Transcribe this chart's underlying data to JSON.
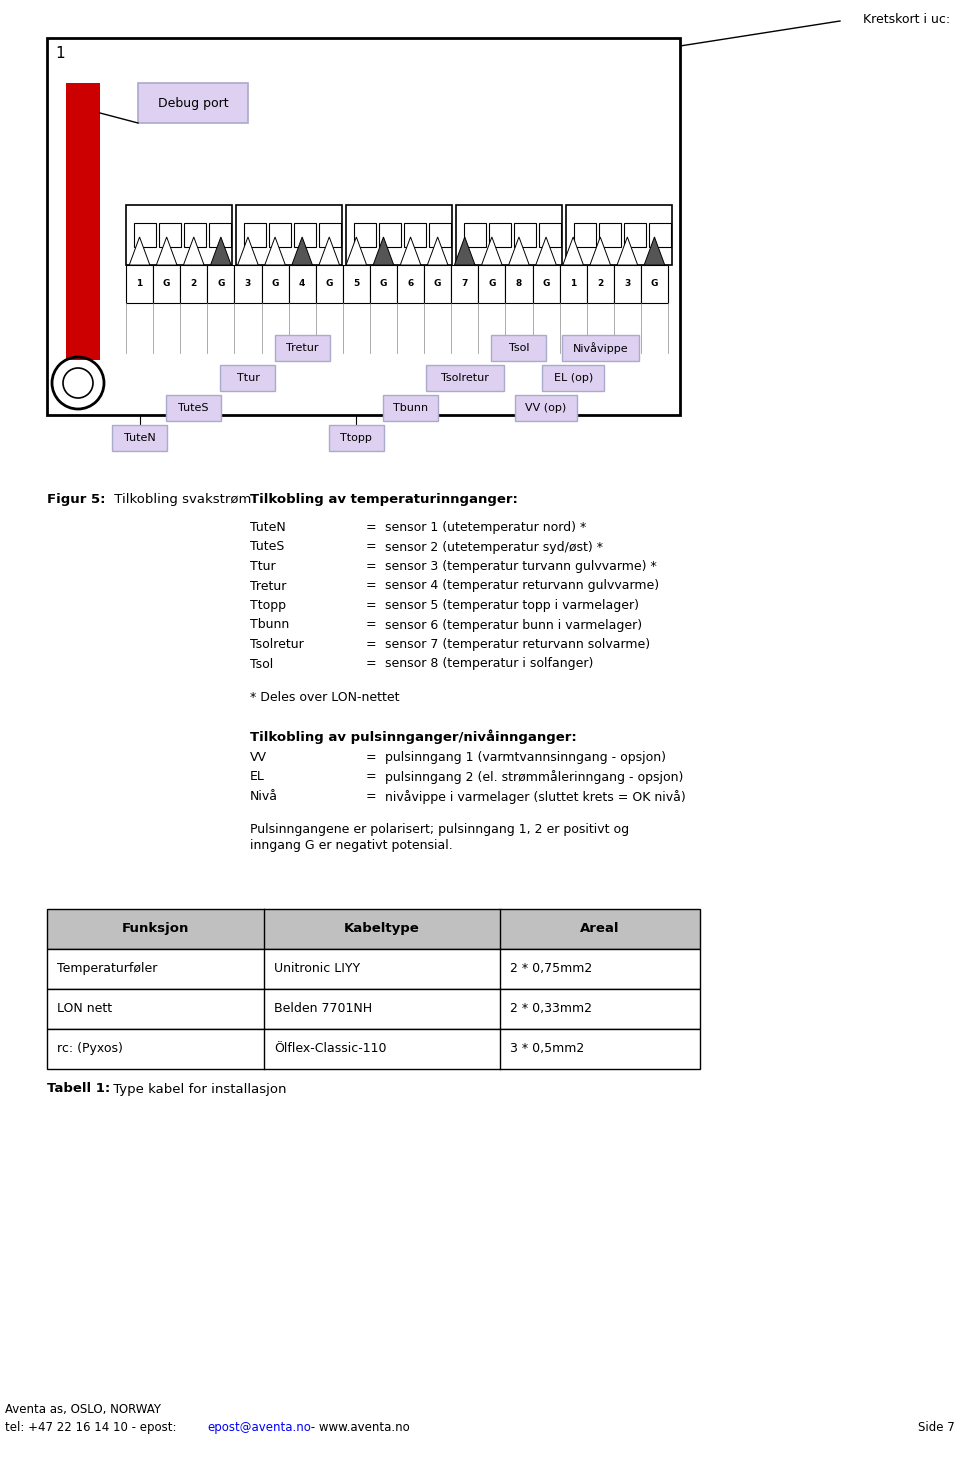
{
  "bg_color": "#ffffff",
  "page_width": 9.6,
  "page_height": 14.61,
  "kretskort_label": "Kretskort i uc:",
  "debug_port_label": "Debug port",
  "terminal_labels": [
    "1",
    "G",
    "2",
    "G",
    "3",
    "G",
    "4",
    "G",
    "5",
    "G",
    "6",
    "G",
    "7",
    "G",
    "8",
    "G",
    "1",
    "2",
    "3",
    "G"
  ],
  "dark_triangle_positions": [
    3,
    6,
    9,
    12,
    19
  ],
  "label_defs": [
    {
      "text": "TuteN",
      "term_idx": 0,
      "level": 0
    },
    {
      "text": "TuteS",
      "term_idx": 2,
      "level": 1
    },
    {
      "text": "Ttur",
      "term_idx": 4,
      "level": 2
    },
    {
      "text": "Tretur",
      "term_idx": 6,
      "level": 3
    },
    {
      "text": "Ttopp",
      "term_idx": 8,
      "level": 0
    },
    {
      "text": "Tbunn",
      "term_idx": 10,
      "level": 1
    },
    {
      "text": "Tsolretur",
      "term_idx": 12,
      "level": 2
    },
    {
      "text": "Tsol",
      "term_idx": 14,
      "level": 3
    },
    {
      "text": "Nivåvippe",
      "term_idx": 17,
      "level": 3
    },
    {
      "text": "EL (op)",
      "term_idx": 16,
      "level": 2
    },
    {
      "text": "VV (op)",
      "term_idx": 15,
      "level": 1
    }
  ],
  "temp_section_title": "Tilkobling av temperaturinnganger:",
  "temp_entries": [
    {
      "name": "TuteN",
      "desc": "sensor 1 (utetemperatur nord) *"
    },
    {
      "name": "TuteS",
      "desc": "sensor 2 (utetemperatur syd/øst) *"
    },
    {
      "name": "Ttur",
      "desc": "sensor 3 (temperatur turvann gulvvarme) *"
    },
    {
      "name": "Tretur",
      "desc": "sensor 4 (temperatur returvann gulvvarme)"
    },
    {
      "name": "Ttopp",
      "desc": "sensor 5 (temperatur topp i varmelager)"
    },
    {
      "name": "Tbunn",
      "desc": "sensor 6 (temperatur bunn i varmelager)"
    },
    {
      "name": "Tsolretur",
      "desc": "sensor 7 (temperatur returvann solvarme)"
    },
    {
      "name": "Tsol",
      "desc": "sensor 8 (temperatur i solfanger)"
    }
  ],
  "lon_note": "* Deles over LON-nettet",
  "pulse_section_title": "Tilkobling av pulsinnganger/nivåinnganger:",
  "pulse_entries": [
    {
      "name": "VV",
      "desc": "pulsinngang 1 (varmtvannsinngang - opsjon)"
    },
    {
      "name": "EL",
      "desc": "pulsinngang 2 (el. strømmålerinngang - opsjon)"
    },
    {
      "name": "Nivå",
      "desc": "nivåvippe i varmelager (sluttet krets = OK nivå)"
    }
  ],
  "pulse_note": "Pulsinngangene er polarisert; pulsinngang 1, 2 er positivt og\ninngang G er negativt potensial.",
  "table_headers": [
    "Funksjon",
    "Kabeltype",
    "Areal"
  ],
  "table_rows": [
    [
      "Temperaturføler",
      "Unitronic LIYY",
      "2 * 0,75mm2"
    ],
    [
      "LON nett",
      "Belden 7701NH",
      "2 * 0,33mm2"
    ],
    [
      "rc: (Pyxos)",
      "Ölflex-Classic-110",
      "3 * 0,5mm2"
    ]
  ],
  "tabell_bold": "Tabell 1:",
  "tabell_normal": " Type kabel for installasjon",
  "footer_email": "epost@aventa.no",
  "footer_right": "Side 7"
}
